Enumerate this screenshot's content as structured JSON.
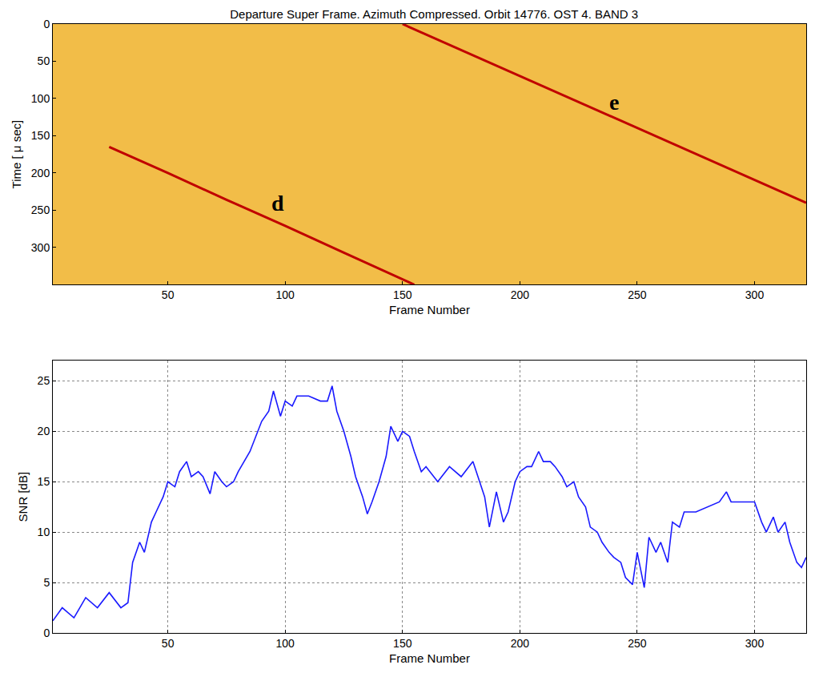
{
  "chart_data": [
    {
      "type": "line",
      "title": "Departure Super Frame. Azimuth Compressed. Orbit 14776. OST 4. BAND 3",
      "x_label": "Frame Number",
      "y_label": "Time [ μ sec]",
      "xlim": [
        1,
        322
      ],
      "ylim": [
        350,
        0
      ],
      "xticks": [
        50,
        100,
        150,
        200,
        250,
        300
      ],
      "yticks": [
        0,
        50,
        100,
        150,
        200,
        250,
        300
      ],
      "grid": false,
      "series": [
        {
          "color": "#c00000",
          "x": [
            25,
            50,
            75,
            100,
            125,
            155
          ],
          "values": [
            165,
            200,
            236,
            271,
            307,
            350
          ]
        },
        {
          "color": "#c00000",
          "x": [
            150,
            200,
            250,
            300,
            322
          ],
          "values": [
            0,
            70,
            140,
            210,
            240
          ]
        }
      ],
      "annotations": [
        {
          "text": "d",
          "x": 97,
          "y": 240
        },
        {
          "text": "e",
          "x": 240,
          "y": 105
        }
      ]
    },
    {
      "type": "line",
      "x_label": "Frame Number",
      "y_label": "SNR [dB]",
      "xlim": [
        1,
        322
      ],
      "ylim": [
        0,
        27
      ],
      "xticks": [
        50,
        100,
        150,
        200,
        250,
        300
      ],
      "yticks": [
        0,
        5,
        10,
        15,
        20,
        25
      ],
      "grid": true,
      "series": [
        {
          "color": "#1a1aff",
          "x": [
            1,
            5,
            10,
            15,
            20,
            25,
            30,
            33,
            35,
            38,
            40,
            43,
            45,
            48,
            50,
            53,
            55,
            58,
            60,
            63,
            65,
            68,
            70,
            73,
            75,
            78,
            80,
            85,
            90,
            93,
            95,
            98,
            100,
            103,
            105,
            110,
            115,
            118,
            120,
            122,
            125,
            128,
            130,
            133,
            135,
            137,
            140,
            143,
            145,
            148,
            150,
            153,
            155,
            158,
            160,
            165,
            170,
            175,
            180,
            183,
            185,
            187,
            190,
            193,
            195,
            198,
            200,
            203,
            205,
            208,
            210,
            213,
            215,
            218,
            220,
            223,
            225,
            228,
            230,
            233,
            235,
            238,
            240,
            243,
            245,
            248,
            250,
            253,
            255,
            258,
            260,
            263,
            265,
            268,
            270,
            275,
            280,
            285,
            288,
            290,
            295,
            300,
            303,
            305,
            308,
            310,
            313,
            315,
            318,
            320,
            322
          ],
          "values": [
            1.2,
            2.5,
            1.5,
            3.5,
            2.5,
            4,
            2.5,
            3,
            7,
            9,
            8,
            11,
            12,
            13.5,
            15,
            14.5,
            16,
            17,
            15.5,
            16,
            15.5,
            13.8,
            16,
            15,
            14.5,
            15,
            16,
            18,
            21,
            22,
            24,
            21.5,
            23,
            22.5,
            23.5,
            23.5,
            23,
            23,
            24.5,
            22,
            20,
            17.5,
            15.5,
            13.5,
            11.8,
            13,
            15,
            17.5,
            20.5,
            19,
            20,
            19.5,
            18,
            16,
            16.5,
            15,
            16.5,
            15.5,
            17,
            15,
            13.5,
            10.5,
            14,
            11,
            12,
            15,
            16,
            16.5,
            16.5,
            18,
            17,
            17,
            16.5,
            15.5,
            14.5,
            15,
            13.5,
            12.5,
            10.5,
            10,
            9,
            8,
            7.5,
            7,
            5.5,
            4.8,
            8,
            4.5,
            9.5,
            8,
            9,
            7,
            11,
            10.5,
            12,
            12,
            12.5,
            13,
            14,
            13,
            13,
            13,
            11,
            10,
            11.5,
            10,
            11,
            9,
            7,
            6.5,
            7.5
          ]
        }
      ]
    }
  ]
}
